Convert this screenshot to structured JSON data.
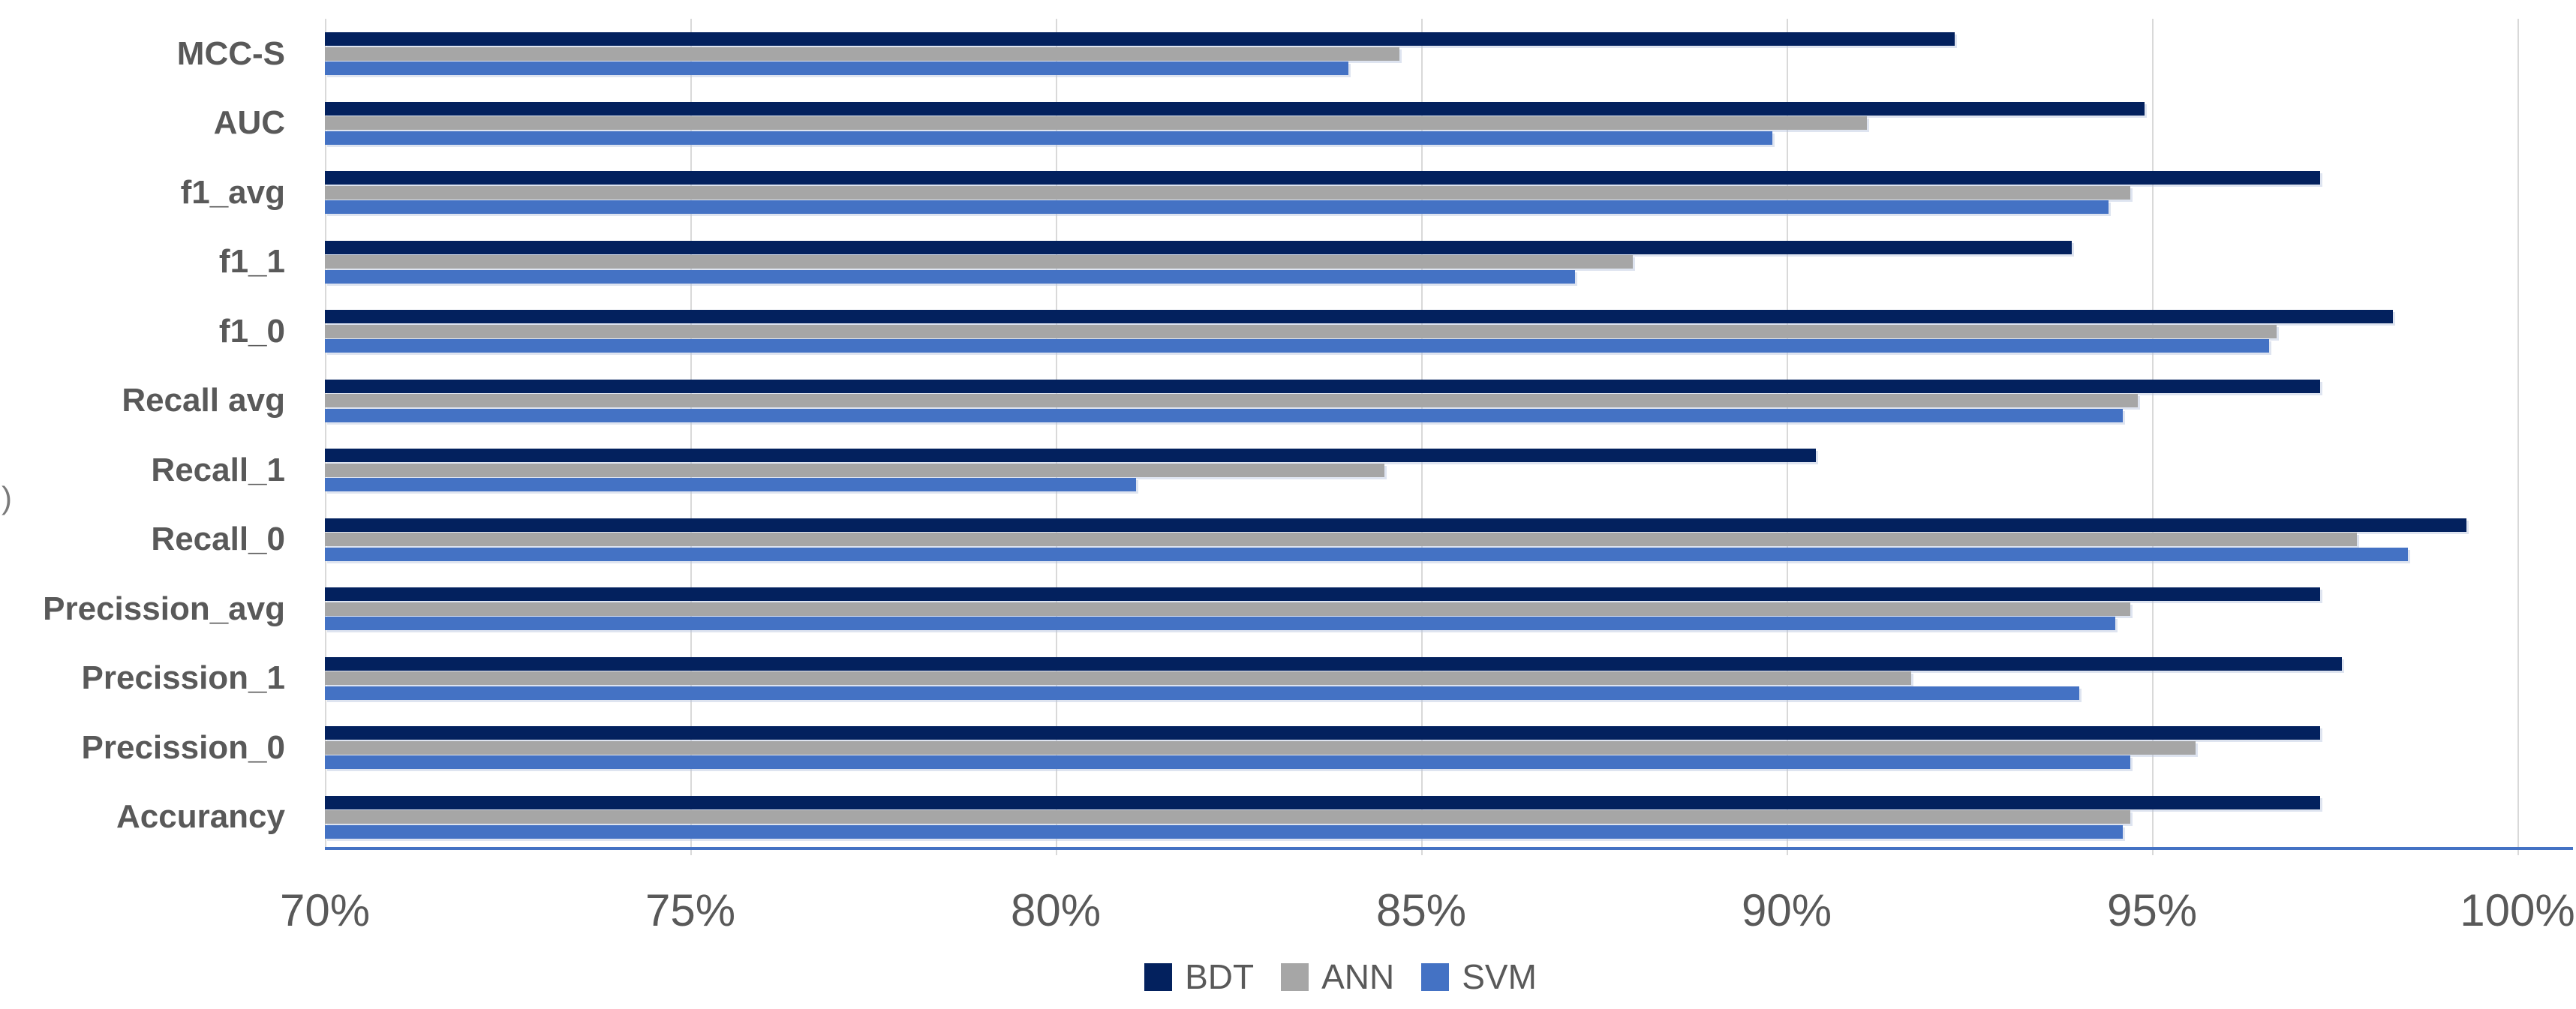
{
  "chart_data": {
    "type": "bar",
    "orientation": "horizontal",
    "title": "",
    "unit": "%",
    "categories": [
      "MCC-S",
      "AUC",
      "f1_avg",
      "f1_1",
      "f1_0",
      "Recall avg",
      "Recall_1",
      "Recall_0",
      "Precission_avg",
      "Precission_1",
      "Precission_0",
      "Accurancy"
    ],
    "series": [
      {
        "name": "BDT",
        "color": "#03215E",
        "values": [
          92.3,
          94.9,
          97.3,
          93.9,
          98.3,
          97.3,
          90.4,
          99.3,
          97.3,
          97.6,
          97.3,
          97.3
        ]
      },
      {
        "name": "ANN",
        "color": "#A6A6A6",
        "values": [
          84.7,
          91.1,
          94.7,
          87.9,
          96.7,
          94.8,
          84.5,
          97.8,
          94.7,
          91.7,
          95.6,
          94.7
        ]
      },
      {
        "name": "SVM",
        "color": "#4472C4",
        "values": [
          84.0,
          89.8,
          94.4,
          87.1,
          96.6,
          94.6,
          81.1,
          98.5,
          94.5,
          94.0,
          94.7,
          94.6
        ]
      }
    ],
    "x_axis": {
      "min": 70,
      "max": 100,
      "tick_labels": [
        "70%",
        "75%",
        "80%",
        "85%",
        "90%",
        "95%",
        "100%"
      ],
      "tick_values": [
        70,
        75,
        80,
        85,
        90,
        95,
        100
      ]
    },
    "legend": {
      "position": "bottom",
      "entries": [
        "BDT",
        "ANN",
        "SVM"
      ]
    },
    "grid": true
  },
  "decor": {
    "left_edge_text": ")"
  },
  "colors": {
    "gridline": "#D9D9D9",
    "category_axis_line": "#D9D9D9",
    "value_axis_line": "#4472C4",
    "label_text": "#595959",
    "bar_bdt": "#03215E",
    "bar_ann": "#A6A6A6",
    "bar_svm": "#4472C4"
  }
}
